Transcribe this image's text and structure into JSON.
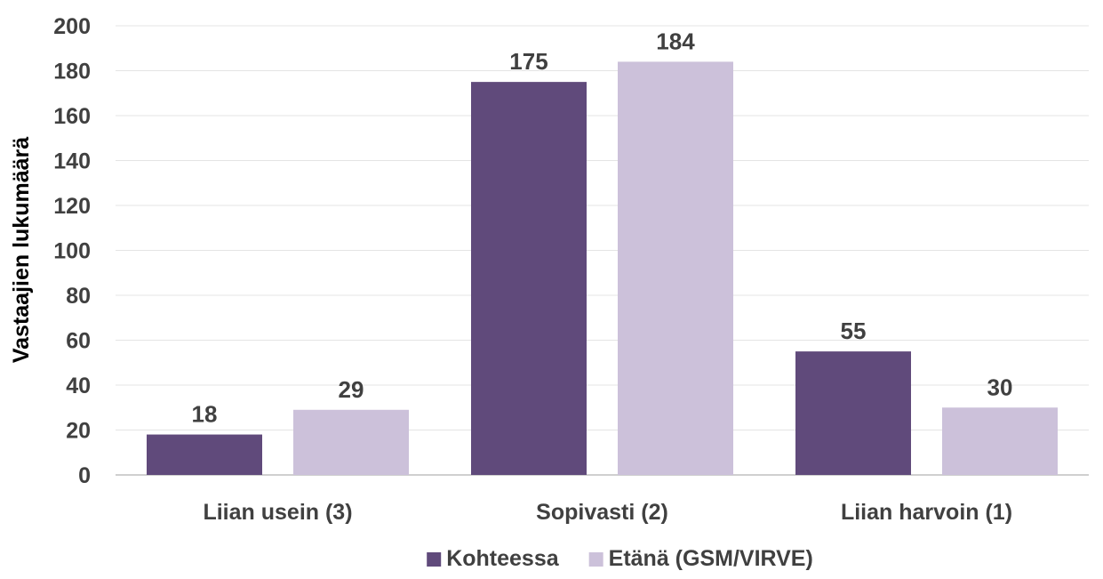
{
  "chart_data": {
    "type": "bar",
    "title": "",
    "xlabel": "",
    "ylabel": "Vastaajien lukumäärä",
    "categories": [
      "Liian usein (3)",
      "Sopivasti (2)",
      "Liian harvoin (1)"
    ],
    "series": [
      {
        "name": "Kohteessa",
        "values": [
          18,
          175,
          55
        ],
        "color": "#604a7b"
      },
      {
        "name": "Etänä (GSM/VIRVE)",
        "values": [
          29,
          184,
          30
        ],
        "color": "#ccc1da"
      }
    ],
    "ylim": [
      0,
      200
    ],
    "yticks": [
      0,
      20,
      40,
      60,
      80,
      100,
      120,
      140,
      160,
      180,
      200
    ],
    "grid": true,
    "legend_position": "bottom",
    "data_labels": true
  }
}
